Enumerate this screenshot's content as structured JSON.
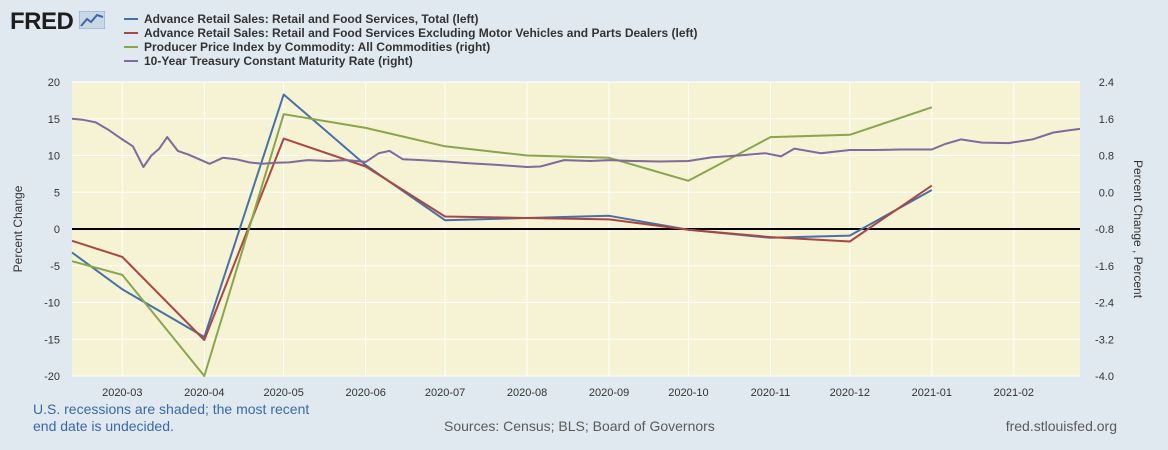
{
  "header": {
    "logo_text": "FRED"
  },
  "legend": [
    {
      "label": "Advance Retail Sales: Retail and Food Services, Total (left)",
      "color": "#4572a7"
    },
    {
      "label": "Advance Retail Sales: Retail and Food Services Excluding Motor Vehicles and Parts Dealers (left)",
      "color": "#aa4643"
    },
    {
      "label": "Producer Price Index by Commodity: All Commodities (right)",
      "color": "#89a54e"
    },
    {
      "label": "10-Year Treasury Constant Maturity Rate (right)",
      "color": "#80699b"
    }
  ],
  "footer": {
    "note": "U.S. recessions are shaded; the most recent end date is undecided.",
    "sources": "Sources: Census; BLS; Board of Governors",
    "site": "fred.stlouisfed.org"
  },
  "chart_data": {
    "type": "line",
    "background": "#f5f3d3",
    "ylabel_left": "Percent Change",
    "ylabel_right": "Percent Change , Percent",
    "ylim_left": [
      -20,
      20
    ],
    "ylim_right": [
      -4.0,
      2.4
    ],
    "yticks_left": [
      "20",
      "15",
      "10",
      "5",
      "0",
      "-5",
      "-10",
      "-15",
      "-20"
    ],
    "yticks_right": [
      "2.4",
      "1.6",
      "0.8",
      "0.0",
      "-0.8",
      "-1.6",
      "-2.4",
      "-3.2",
      "-4.0"
    ],
    "xticks": [
      "2020-03",
      "2020-04",
      "2020-05",
      "2020-06",
      "2020-07",
      "2020-08",
      "2020-09",
      "2020-10",
      "2020-11",
      "2020-12",
      "2021-01",
      "2021-02"
    ],
    "xlim": [
      "2020-02-11",
      "2021-02-26"
    ],
    "series": [
      {
        "name": "Advance Retail Sales: Retail and Food Services, Total (left)",
        "axis": "left",
        "color": "#4572a7",
        "x": [
          "2020-02-11",
          "2020-03-01",
          "2020-04-01",
          "2020-05-01",
          "2020-06-01",
          "2020-07-01",
          "2020-08-01",
          "2020-09-01",
          "2020-10-01",
          "2020-11-01",
          "2020-12-01",
          "2021-01-01"
        ],
        "y": [
          -3.2,
          -8.2,
          -14.7,
          18.3,
          8.7,
          1.2,
          1.5,
          1.8,
          -0.1,
          -1.2,
          -0.9,
          5.3
        ]
      },
      {
        "name": "Advance Retail Sales: Retail and Food Services Excluding Motor Vehicles and Parts Dealers (left)",
        "axis": "left",
        "color": "#aa4643",
        "x": [
          "2020-02-11",
          "2020-03-01",
          "2020-04-01",
          "2020-05-01",
          "2020-06-01",
          "2020-07-01",
          "2020-08-01",
          "2020-09-01",
          "2020-10-01",
          "2020-11-01",
          "2020-12-01",
          "2021-01-01"
        ],
        "y": [
          -1.6,
          -3.8,
          -15.1,
          12.3,
          8.5,
          1.7,
          1.5,
          1.3,
          -0.1,
          -1.1,
          -1.7,
          5.9
        ]
      },
      {
        "name": "Producer Price Index by Commodity: All Commodities (right)",
        "axis": "right",
        "color": "#89a54e",
        "x": [
          "2020-02-11",
          "2020-03-01",
          "2020-04-01",
          "2020-05-01",
          "2020-06-01",
          "2020-07-01",
          "2020-08-01",
          "2020-09-01",
          "2020-10-01",
          "2020-11-01",
          "2020-12-01",
          "2021-01-01"
        ],
        "y": [
          -1.5,
          -1.8,
          -4.0,
          1.7,
          1.4,
          1.0,
          0.8,
          0.75,
          0.25,
          1.2,
          1.25,
          1.85
        ]
      },
      {
        "name": "10-Year Treasury Constant Maturity Rate (right)",
        "axis": "right",
        "color": "#80699b",
        "x": [
          "2020-02-11",
          "2020-02-15",
          "2020-02-20",
          "2020-02-25",
          "2020-03-01",
          "2020-03-05",
          "2020-03-09",
          "2020-03-12",
          "2020-03-15",
          "2020-03-18",
          "2020-03-22",
          "2020-03-26",
          "2020-03-30",
          "2020-04-03",
          "2020-04-08",
          "2020-04-13",
          "2020-04-18",
          "2020-04-23",
          "2020-04-28",
          "2020-05-03",
          "2020-05-10",
          "2020-05-18",
          "2020-05-25",
          "2020-06-01",
          "2020-06-06",
          "2020-06-10",
          "2020-06-15",
          "2020-06-22",
          "2020-07-01",
          "2020-07-10",
          "2020-07-20",
          "2020-08-01",
          "2020-08-06",
          "2020-08-15",
          "2020-08-25",
          "2020-09-01",
          "2020-09-10",
          "2020-09-20",
          "2020-10-01",
          "2020-10-10",
          "2020-10-20",
          "2020-10-30",
          "2020-11-05",
          "2020-11-10",
          "2020-11-20",
          "2020-12-01",
          "2020-12-10",
          "2020-12-20",
          "2021-01-01",
          "2021-01-06",
          "2021-01-12",
          "2021-01-20",
          "2021-01-30",
          "2021-02-08",
          "2021-02-16",
          "2021-02-22",
          "2021-02-26"
        ],
        "y": [
          1.6,
          1.58,
          1.52,
          1.35,
          1.15,
          1.0,
          0.55,
          0.8,
          0.95,
          1.2,
          0.9,
          0.82,
          0.72,
          0.62,
          0.75,
          0.72,
          0.65,
          0.62,
          0.64,
          0.65,
          0.7,
          0.68,
          0.7,
          0.66,
          0.85,
          0.9,
          0.72,
          0.7,
          0.67,
          0.63,
          0.6,
          0.55,
          0.56,
          0.7,
          0.68,
          0.7,
          0.68,
          0.67,
          0.68,
          0.76,
          0.8,
          0.85,
          0.78,
          0.95,
          0.85,
          0.92,
          0.92,
          0.93,
          0.93,
          1.05,
          1.15,
          1.08,
          1.07,
          1.15,
          1.3,
          1.35,
          1.38
        ]
      }
    ]
  }
}
